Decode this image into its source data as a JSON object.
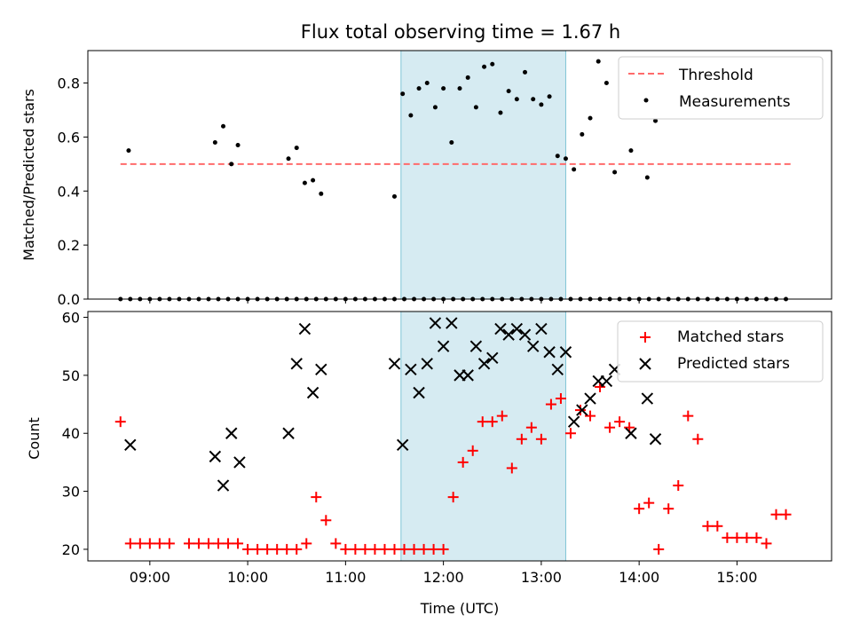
{
  "title": "Flux total observing time = 1.67 h",
  "xlabel": "Time (UTC)",
  "x_ticks": [
    "09:00",
    "10:00",
    "11:00",
    "12:00",
    "13:00",
    "14:00",
    "15:00"
  ],
  "colors": {
    "threshold": "#ff6b6b",
    "measurements": "#000000",
    "matched": "#ff0000",
    "predicted": "#000000",
    "highlight": "#add8e6"
  },
  "chart_data": [
    {
      "type": "scatter",
      "ylabel": "Matched/Predicted stars",
      "xlim": [
        "08:22",
        "15:58"
      ],
      "ylim": [
        0,
        0.92
      ],
      "y_ticks": [
        0.0,
        0.2,
        0.4,
        0.6,
        0.8
      ],
      "shaded_span": [
        "11:34",
        "13:15"
      ],
      "legend": {
        "position": "top-right",
        "entries": [
          "Threshold",
          "Measurements"
        ]
      },
      "threshold": {
        "name": "Threshold",
        "y": 0.5,
        "x": [
          "08:42",
          "15:34"
        ]
      },
      "series": [
        {
          "name": "Measurements",
          "x": [
            "08:42",
            "08:48",
            "08:54",
            "09:00",
            "09:06",
            "09:12",
            "09:18",
            "09:24",
            "09:30",
            "09:36",
            "09:42",
            "09:48",
            "09:54",
            "10:00",
            "10:06",
            "10:12",
            "10:18",
            "10:24",
            "10:30",
            "10:36",
            "10:42",
            "10:48",
            "10:54",
            "11:00",
            "11:06",
            "11:12",
            "11:18",
            "11:24",
            "11:30",
            "11:36",
            "11:42",
            "11:48",
            "11:54",
            "12:00",
            "12:06",
            "12:12",
            "12:18",
            "12:24",
            "12:30",
            "12:36",
            "12:42",
            "12:48",
            "12:54",
            "13:00",
            "13:06",
            "13:12",
            "13:18",
            "13:24",
            "13:30",
            "13:36",
            "13:42",
            "13:48",
            "13:54",
            "14:00",
            "14:06",
            "14:12",
            "14:18",
            "14:24",
            "14:30",
            "14:36",
            "14:42",
            "14:48",
            "14:54",
            "15:00",
            "15:06",
            "15:12",
            "15:18",
            "15:24",
            "15:30"
          ],
          "y": [
            0.0,
            0.0,
            0.0,
            0.0,
            0.0,
            0.0,
            0.0,
            0.0,
            0.0,
            0.0,
            0.0,
            0.0,
            0.0,
            0.0,
            0.0,
            0.0,
            0.0,
            0.0,
            0.0,
            0.0,
            0.0,
            0.0,
            0.0,
            0.0,
            0.0,
            0.0,
            0.0,
            0.0,
            0.0,
            0.0,
            0.0,
            0.0,
            0.0,
            0.0,
            0.0,
            0.0,
            0.0,
            0.0,
            0.0,
            0.0,
            0.0,
            0.0,
            0.0,
            0.0,
            0.0,
            0.0,
            0.0,
            0.0,
            0.0,
            0.0,
            0.0,
            0.0,
            0.0,
            0.0,
            0.0,
            0.0,
            0.0,
            0.0,
            0.0,
            0.0,
            0.0,
            0.0,
            0.0,
            0.0,
            0.0,
            0.0,
            0.0,
            0.0,
            0.0
          ]
        },
        {
          "name": "Measurements",
          "x": [
            "08:47",
            "09:40",
            "09:45",
            "09:50",
            "09:54",
            "10:25",
            "10:30",
            "10:35",
            "10:40",
            "10:45",
            "11:30",
            "11:35",
            "11:40",
            "11:45",
            "11:50",
            "11:55",
            "12:00",
            "12:05",
            "12:10",
            "12:15",
            "12:20",
            "12:25",
            "12:30",
            "12:35",
            "12:40",
            "12:45",
            "12:50",
            "12:55",
            "13:00",
            "13:05",
            "13:10",
            "13:15",
            "13:20",
            "13:25",
            "13:30",
            "13:35",
            "13:40",
            "13:45",
            "13:55",
            "14:05",
            "14:10"
          ],
          "y": [
            0.55,
            0.58,
            0.64,
            0.5,
            0.57,
            0.52,
            0.56,
            0.43,
            0.44,
            0.39,
            0.38,
            0.76,
            0.68,
            0.78,
            0.8,
            0.71,
            0.78,
            0.58,
            0.78,
            0.82,
            0.71,
            0.86,
            0.87,
            0.69,
            0.77,
            0.74,
            0.84,
            0.74,
            0.72,
            0.75,
            0.53,
            0.52,
            0.48,
            0.61,
            0.67,
            0.88,
            0.8,
            0.47,
            0.55,
            0.45,
            0.66
          ]
        }
      ]
    },
    {
      "type": "scatter",
      "ylabel": "Count",
      "xlim": [
        "08:22",
        "15:58"
      ],
      "ylim": [
        18,
        61
      ],
      "y_ticks": [
        20,
        30,
        40,
        50,
        60
      ],
      "shaded_span": [
        "11:34",
        "13:15"
      ],
      "legend": {
        "position": "top-right",
        "entries": [
          "Matched stars",
          "Predicted stars"
        ]
      },
      "series": [
        {
          "name": "Matched stars",
          "x": [
            "08:42",
            "08:48",
            "08:54",
            "09:00",
            "09:06",
            "09:12",
            "09:24",
            "09:30",
            "09:36",
            "09:42",
            "09:48",
            "09:54",
            "10:00",
            "10:06",
            "10:12",
            "10:18",
            "10:24",
            "10:30",
            "10:36",
            "10:42",
            "10:48",
            "10:54",
            "11:00",
            "11:06",
            "11:12",
            "11:18",
            "11:24",
            "11:30",
            "11:36",
            "11:42",
            "11:48",
            "11:54",
            "12:00",
            "12:06",
            "12:12",
            "12:18",
            "12:24",
            "12:30",
            "12:36",
            "12:42",
            "12:48",
            "12:54",
            "13:00",
            "13:06",
            "13:12",
            "13:18",
            "13:24",
            "13:30",
            "13:36",
            "13:42",
            "13:48",
            "13:54",
            "14:00",
            "14:06",
            "14:12",
            "14:18",
            "14:24",
            "14:30",
            "14:36",
            "14:42",
            "14:48",
            "14:54",
            "15:00",
            "15:06",
            "15:12",
            "15:18",
            "15:24",
            "15:30"
          ],
          "y": [
            42,
            21,
            21,
            21,
            21,
            21,
            21,
            21,
            21,
            21,
            21,
            21,
            20,
            20,
            20,
            20,
            20,
            20,
            21,
            29,
            25,
            21,
            20,
            20,
            20,
            20,
            20,
            20,
            20,
            20,
            20,
            20,
            20,
            29,
            35,
            37,
            42,
            42,
            43,
            34,
            39,
            41,
            39,
            45,
            46,
            40,
            44,
            43,
            48,
            41,
            42,
            41,
            27,
            28,
            20,
            27,
            31,
            43,
            39,
            24,
            24,
            22,
            22,
            22,
            22,
            21,
            26,
            26
          ]
        },
        {
          "name": "Predicted stars",
          "x": [
            "08:48",
            "09:40",
            "09:45",
            "09:50",
            "09:55",
            "10:25",
            "10:30",
            "10:35",
            "10:40",
            "10:45",
            "11:30",
            "11:35",
            "11:40",
            "11:45",
            "11:50",
            "11:55",
            "12:00",
            "12:05",
            "12:10",
            "12:15",
            "12:20",
            "12:25",
            "12:30",
            "12:35",
            "12:40",
            "12:45",
            "12:50",
            "12:55",
            "13:00",
            "13:05",
            "13:10",
            "13:15",
            "13:20",
            "13:25",
            "13:30",
            "13:35",
            "13:40",
            "13:45",
            "13:55",
            "14:05",
            "14:10"
          ],
          "y": [
            38,
            36,
            31,
            40,
            35,
            40,
            52,
            58,
            47,
            51,
            52,
            38,
            51,
            47,
            52,
            59,
            55,
            59,
            50,
            50,
            55,
            52,
            53,
            58,
            57,
            58,
            57,
            55,
            58,
            54,
            51,
            54,
            42,
            44,
            46,
            49,
            49,
            51,
            40,
            46,
            39
          ]
        }
      ]
    }
  ]
}
